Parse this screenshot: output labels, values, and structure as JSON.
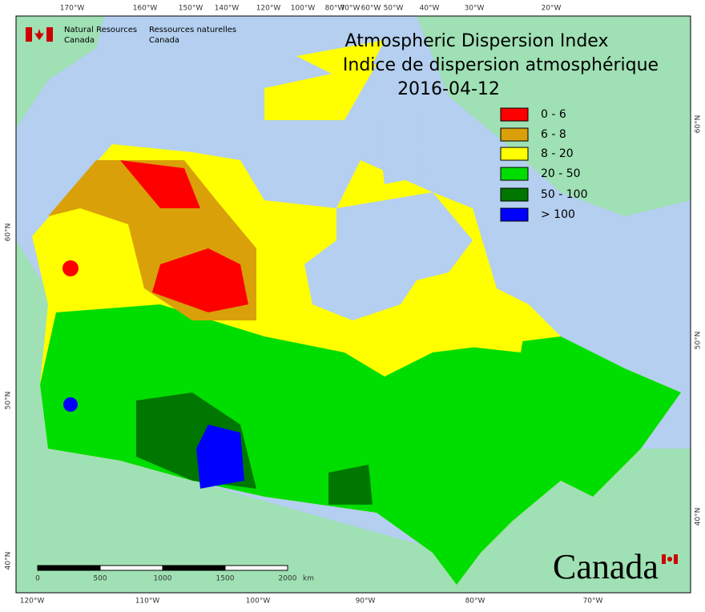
{
  "header": {
    "logo_en": [
      "Natural Resources",
      "Canada"
    ],
    "logo_fr": [
      "Ressources naturelles",
      "Canada"
    ]
  },
  "title": [
    "Atmospheric Dispersion Index",
    "Indice de dispersion atmosphérique",
    "2016-04-12"
  ],
  "legend": [
    {
      "label": "0 - 6",
      "color": "#ff0000"
    },
    {
      "label": "6 - 8",
      "color": "#d9a00a"
    },
    {
      "label": "8 - 20",
      "color": "#ffff00"
    },
    {
      "label": "20 - 50",
      "color": "#00dd00"
    },
    {
      "label": "50 - 100",
      "color": "#007700"
    },
    {
      "label": "> 100",
      "color": "#0000ff"
    }
  ],
  "graticule": {
    "top": [
      "170°W",
      "160°W",
      "150°W",
      "140°W",
      "120°W",
      "100°W",
      "80°W",
      "70°W",
      "60°W",
      "50°W",
      "40°W",
      "30°W",
      "20°W"
    ],
    "bottom": [
      "120°W",
      "110°W",
      "100°W",
      "90°W",
      "80°W",
      "70°W"
    ],
    "left": [
      "60°N",
      "50°N",
      "40°N"
    ],
    "right": [
      "60°N",
      "50°N",
      "40°N"
    ]
  },
  "scale_bar": {
    "labels": [
      "0",
      "500",
      "1000",
      "1500",
      "2000"
    ],
    "unit": "km"
  },
  "wordmark": "Canada"
}
